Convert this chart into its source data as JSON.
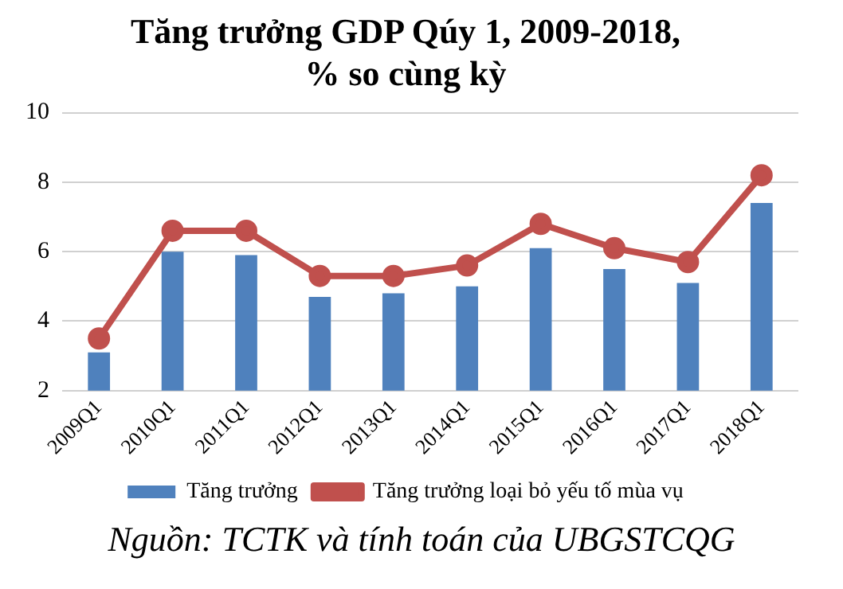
{
  "chart_data": {
    "type": "bar",
    "title": "Tăng trưởng GDP Qúy 1, 2009-2018,\n% so cùng kỳ",
    "categories": [
      "2009Q1",
      "2010Q1",
      "2011Q1",
      "2012Q1",
      "2013Q1",
      "2014Q1",
      "2015Q1",
      "2016Q1",
      "2017Q1",
      "2018Q1"
    ],
    "series": [
      {
        "name": "Tăng trưởng",
        "color": "#4f81bd",
        "values": [
          3.1,
          6.0,
          5.9,
          4.7,
          4.8,
          5.0,
          6.1,
          5.5,
          5.1,
          7.4
        ]
      },
      {
        "name": "Tăng trưởng loại bỏ yếu tố mùa vụ",
        "type": "line",
        "color": "#c0504d",
        "values": [
          3.5,
          6.6,
          6.6,
          5.3,
          5.3,
          5.6,
          6.8,
          6.1,
          5.7,
          8.2
        ]
      }
    ],
    "ylim": [
      2,
      10
    ],
    "yticks": [
      2,
      4,
      6,
      8,
      10
    ],
    "grid": "y",
    "legend": "bottom",
    "marker": "circle",
    "annotations": [
      "Nguồn: TCTK và tính toán của UBGSTCQG"
    ]
  }
}
